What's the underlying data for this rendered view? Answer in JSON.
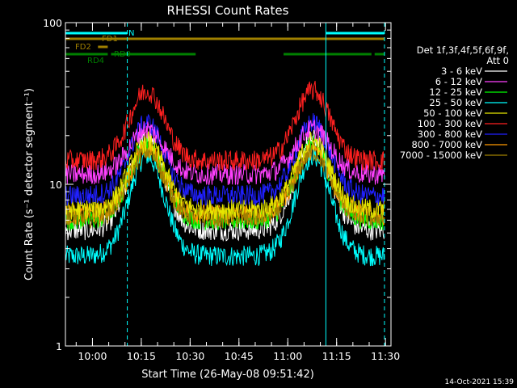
{
  "chart_data": {
    "type": "line",
    "title": "RHESSI Count Rates",
    "xlabel": "Start Time (26-May-08 09:51:42)",
    "ylabel": "Count Rate (s⁻¹ detector segment⁻¹)",
    "yscale": "log",
    "xlim_minutes": [
      0,
      100
    ],
    "ylim": [
      1,
      100
    ],
    "x_ticks": [
      "10:00",
      "10:15",
      "10:30",
      "10:45",
      "11:00",
      "11:15",
      "11:30"
    ],
    "x_tick_minutes": [
      8.3,
      23.3,
      38.3,
      53.3,
      68.3,
      83.3,
      98.3
    ],
    "y_ticks": [
      "1",
      "10",
      "100"
    ],
    "y_tick_values": [
      1,
      10,
      100
    ],
    "legend": {
      "header_line1": "Det 1f,3f,4f,5f,6f,9f,",
      "header_line2": "Att 0",
      "placement": "right"
    },
    "series": [
      {
        "name": "3 - 6 keV",
        "color": "#ffffff",
        "low": 5.2,
        "high": 19.0
      },
      {
        "name": "6 - 12 keV",
        "color": "#ff40ff",
        "low": 11.5,
        "high": 22.0
      },
      {
        "name": "12 - 25 keV",
        "color": "#00ff00",
        "low": 6.0,
        "high": 17.5
      },
      {
        "name": "25 - 50 keV",
        "color": "#00ffff",
        "low": 3.6,
        "high": 15.0
      },
      {
        "name": "50 - 100 keV",
        "color": "#e6e600",
        "low": 7.0,
        "high": 18.5
      },
      {
        "name": "100 - 300 keV",
        "color": "#ff2020",
        "low": 14.0,
        "high": 38.0
      },
      {
        "name": "300 - 800 keV",
        "color": "#2020ff",
        "low": 8.5,
        "high": 24.0
      },
      {
        "name": "800 - 7000 keV",
        "color": "#ff9900",
        "low": 6.5,
        "high": 16.5
      },
      {
        "name": "7000 - 15000 keV",
        "color": "#a08000",
        "low": 6.2,
        "high": 16.0
      }
    ],
    "peaks_minutes": [
      25,
      76
    ],
    "vertical_markers": [
      {
        "minute": 0,
        "style": "solid",
        "color": "#00ffff"
      },
      {
        "minute": 19,
        "style": "dashed",
        "color": "#00ffff"
      },
      {
        "minute": 80,
        "style": "solid",
        "color": "#00ffff"
      },
      {
        "minute": 98,
        "style": "dashed",
        "color": "#00ffff"
      }
    ],
    "flag_bars": [
      {
        "label": "N",
        "color": "#00ffff",
        "row": 0,
        "segments": [
          [
            0,
            19
          ],
          [
            80,
            98
          ]
        ]
      },
      {
        "label": "FD1",
        "color": "#a08000",
        "row": 1,
        "segments": [
          [
            0,
            98
          ]
        ]
      },
      {
        "label": "FD2",
        "color": "#a08000",
        "row": 2,
        "segments": [
          [
            10,
            13
          ]
        ]
      },
      {
        "label": "RD0",
        "color": "#008000",
        "row": 3,
        "segments": [
          [
            0,
            13
          ]
        ]
      },
      {
        "label": "RD4",
        "color": "#008000",
        "row": 3,
        "segments": [
          [
            14,
            40
          ],
          [
            67,
            94
          ],
          [
            95,
            98
          ]
        ]
      }
    ],
    "flag_extra": {
      "rd0_right_segment": [
        95,
        98
      ]
    }
  },
  "footer": {
    "timestamp": "14-Oct-2021 15:39"
  }
}
